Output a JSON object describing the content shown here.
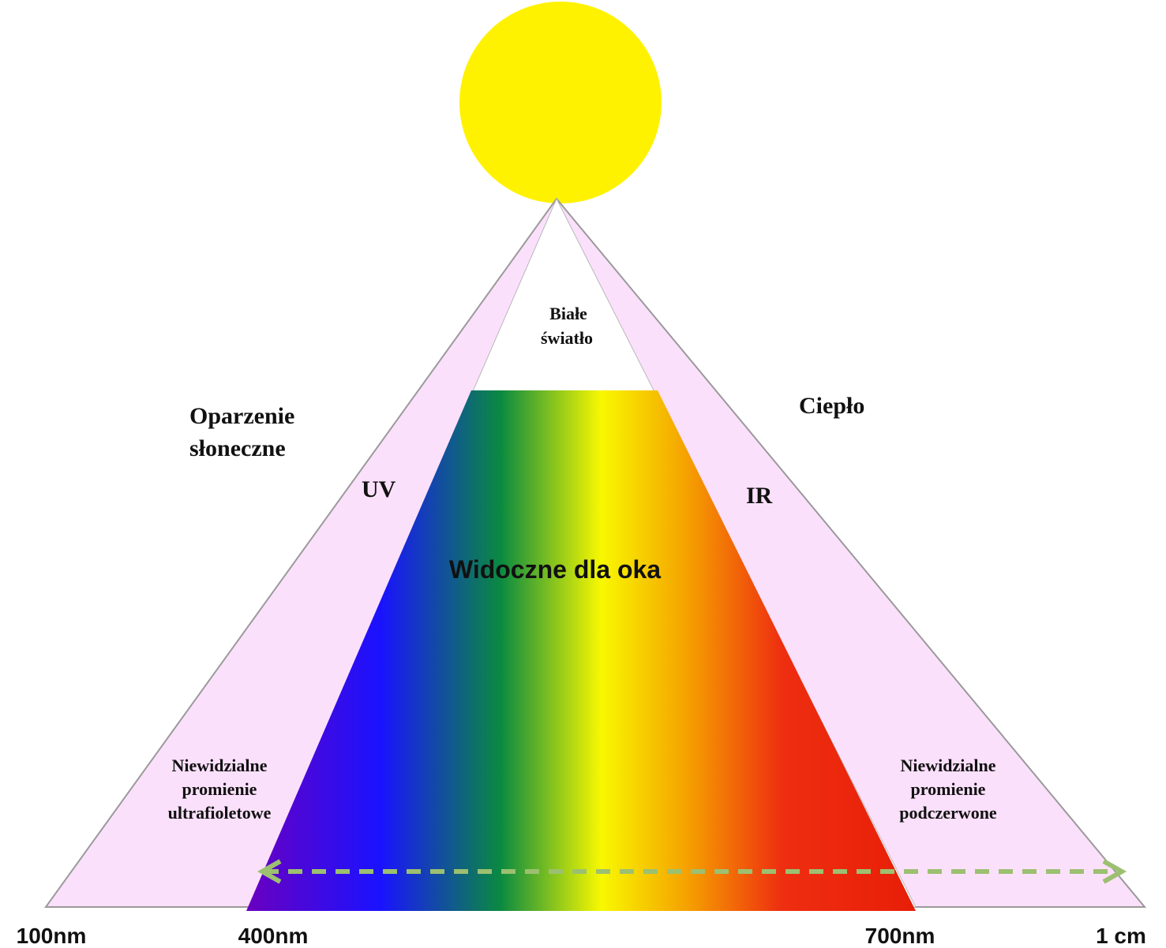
{
  "diagram": {
    "white_light": [
      "Białe",
      "światło"
    ],
    "sunburn": [
      "Oparzenie",
      "słoneczne"
    ],
    "heat": "Ciepło",
    "uv": "UV",
    "ir": "IR",
    "visible": "Widoczne dla oka",
    "uv_invisible": [
      "Niewidzialne",
      "promienie",
      "ultrafioletowe"
    ],
    "ir_invisible": [
      "Niewidzialne",
      "promienie",
      "podczerwone"
    ],
    "scale": [
      "100nm",
      "400nm",
      "700nm",
      "1 cm"
    ]
  }
}
